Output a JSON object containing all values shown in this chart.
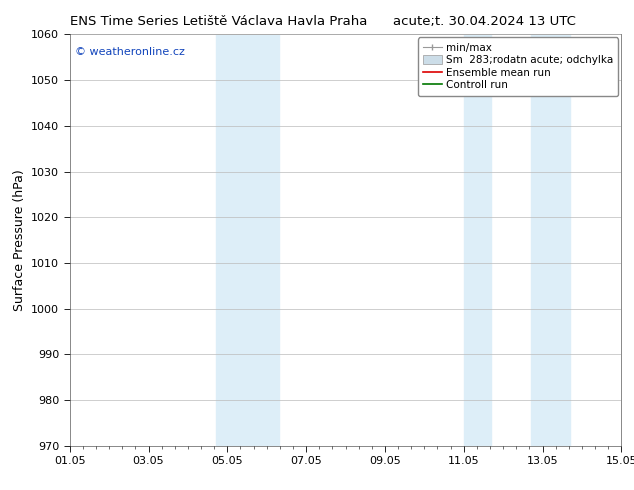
{
  "title_left": "ENS Time Series Letiště Václava Havla Praha",
  "title_right": "acute;t. 30.04.2024 13 UTC",
  "ylabel": "Surface Pressure (hPa)",
  "ylim": [
    970,
    1060
  ],
  "yticks": [
    970,
    980,
    990,
    1000,
    1010,
    1020,
    1030,
    1040,
    1050,
    1060
  ],
  "xlim": [
    0,
    14
  ],
  "xtick_labels": [
    "01.05",
    "03.05",
    "05.05",
    "07.05",
    "09.05",
    "11.05",
    "13.05",
    "15.05"
  ],
  "xtick_positions": [
    0,
    2,
    4,
    6,
    8,
    10,
    12,
    14
  ],
  "shaded_bands": [
    {
      "start": 3.7,
      "end": 5.3
    },
    {
      "start": 10.0,
      "end": 10.7
    },
    {
      "start": 11.7,
      "end": 12.7
    }
  ],
  "shaded_color": "#ddeef8",
  "watermark_text": "© weatheronline.cz",
  "watermark_color": "#1144bb",
  "legend_labels": [
    "min/max",
    "Sm  283;rodatn acute; odchylka",
    "Ensemble mean run",
    "Controll run"
  ],
  "legend_line_color": "#999999",
  "legend_patch_color": "#ccdde8",
  "legend_red": "#dd0000",
  "legend_green": "#007700",
  "bg_color": "#ffffff",
  "grid_color": "#bbbbbb",
  "spine_color": "#888888",
  "title_fontsize": 9.5,
  "tick_fontsize": 8,
  "ylabel_fontsize": 9,
  "watermark_fontsize": 8,
  "legend_fontsize": 7.5
}
